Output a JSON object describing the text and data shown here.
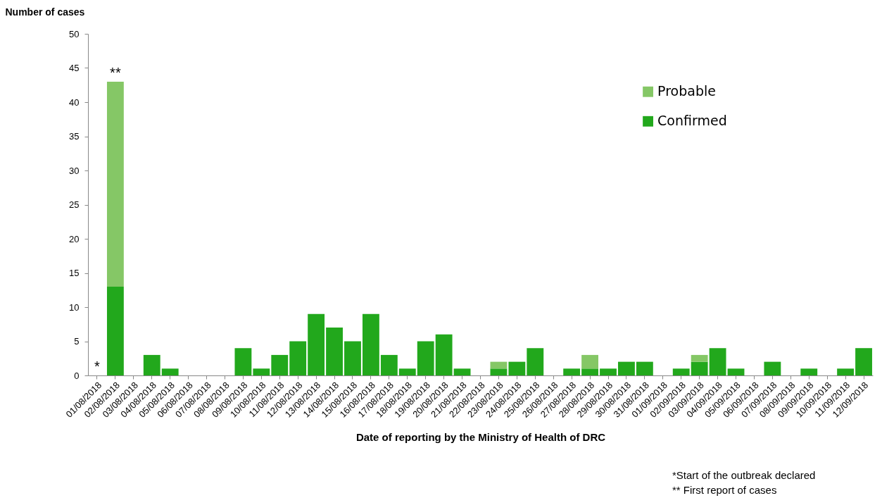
{
  "chart_data": {
    "type": "bar",
    "stacked": true,
    "ylabel": "Number of cases",
    "xlabel": "Date of reporting by the Ministry of Health of DRC",
    "categories": [
      "01/08/2018",
      "02/08/2018",
      "03/08/2018",
      "04/08/2018",
      "05/08/2018",
      "06/08/2018",
      "07/08/2018",
      "08/08/2018",
      "09/08/2018",
      "10/08/2018",
      "11/08/2018",
      "12/08/2018",
      "13/08/2018",
      "14/08/2018",
      "15/08/2018",
      "16/08/2018",
      "17/08/2018",
      "18/08/2018",
      "19/08/2018",
      "20/08/2018",
      "21/08/2018",
      "22/08/2018",
      "23/08/2018",
      "24/08/2018",
      "25/08/2018",
      "26/08/2018",
      "27/08/2018",
      "28/08/2018",
      "29/08/2018",
      "30/08/2018",
      "31/08/2018",
      "01/09/2018",
      "02/09/2018",
      "03/09/2018",
      "04/09/2018",
      "05/09/2018",
      "06/09/2018",
      "07/09/2018",
      "08/09/2018",
      "09/09/2018",
      "10/09/2018",
      "11/09/2018",
      "12/09/2018"
    ],
    "series": [
      {
        "name": "Confirmed",
        "color": "#22a81c",
        "values": [
          0,
          13,
          0,
          3,
          1,
          0,
          0,
          0,
          4,
          1,
          3,
          5,
          9,
          7,
          5,
          9,
          3,
          1,
          5,
          6,
          1,
          0,
          1,
          2,
          4,
          0,
          1,
          1,
          1,
          2,
          2,
          0,
          1,
          2,
          4,
          1,
          0,
          2,
          0,
          1,
          0,
          1,
          4
        ]
      },
      {
        "name": "Probable",
        "color": "#85c766",
        "values": [
          0,
          30,
          0,
          0,
          0,
          0,
          0,
          0,
          0,
          0,
          0,
          0,
          0,
          0,
          0,
          0,
          0,
          0,
          0,
          0,
          0,
          0,
          1,
          0,
          0,
          0,
          0,
          2,
          0,
          0,
          0,
          0,
          0,
          1,
          0,
          0,
          0,
          0,
          0,
          0,
          0,
          0,
          0
        ]
      }
    ],
    "ylim": [
      0,
      50
    ],
    "yticks": [
      0,
      5,
      10,
      15,
      20,
      25,
      30,
      35,
      40,
      45,
      50
    ],
    "grid": false,
    "legend": "top right",
    "annotations": [
      {
        "text": "*",
        "x": "01/08/2018",
        "y": 0
      },
      {
        "text": "**",
        "x": "02/08/2018",
        "y": 43
      },
      "*Start of the outbreak declared",
      "** First report of cases"
    ]
  }
}
